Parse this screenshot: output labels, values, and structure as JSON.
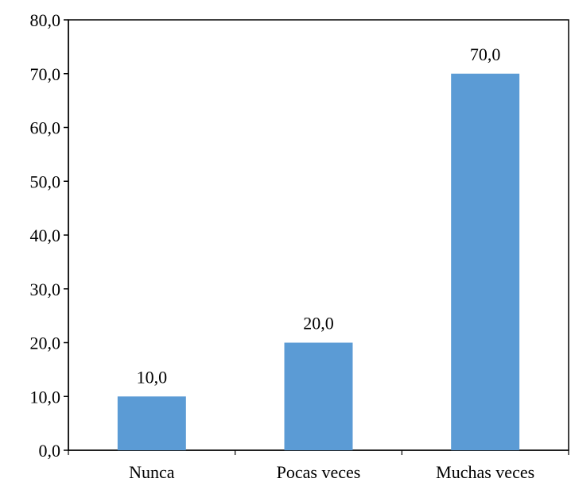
{
  "chart_data": {
    "type": "bar",
    "categories": [
      "Nunca",
      "Pocas veces",
      "Muchas veces"
    ],
    "values": [
      10.0,
      20.0,
      70.0
    ],
    "data_labels": [
      "10,0",
      "20,0",
      "70,0"
    ],
    "ylim": [
      0,
      80
    ],
    "yticks": [
      0,
      10,
      20,
      30,
      40,
      50,
      60,
      70,
      80
    ],
    "ytick_labels": [
      "0,0",
      "10,0",
      "20,0",
      "30,0",
      "40,0",
      "50,0",
      "60,0",
      "70,0",
      "80,0"
    ],
    "title": "",
    "xlabel": "",
    "ylabel": "",
    "grid": false,
    "legend": "none",
    "bar_color": "#5B9BD5",
    "axis_color": "#000000"
  }
}
